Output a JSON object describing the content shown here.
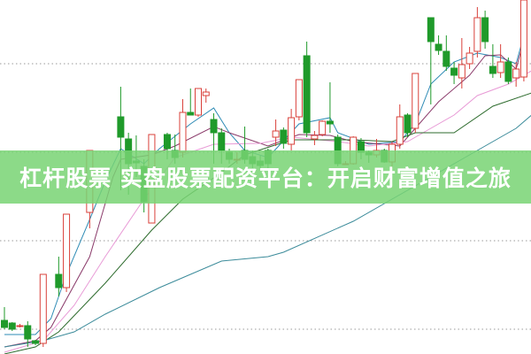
{
  "banner": {
    "title": "杠杆股票 实盘股票配资平台：开启财富增值之旅"
  },
  "chart_data": {
    "type": "candlestick",
    "title": "",
    "xlabel": "",
    "ylabel": "",
    "note": "no axis labels printed; prices on a relative 0-100 scale",
    "ylim": [
      0,
      100
    ],
    "grid": true,
    "gridlines": [
      82,
      57,
      32,
      7
    ],
    "colors": {
      "up": "#d9403a",
      "down": "#1f9a2a",
      "grid": "#999999",
      "banner": "#78d473"
    },
    "candles_columns": [
      "index",
      "open",
      "high",
      "low",
      "close"
    ],
    "candles": [
      [
        0,
        9.5,
        13.25,
        7,
        7.5
      ],
      [
        1,
        8.75,
        9,
        6.5,
        7
      ],
      [
        2,
        8,
        8.5,
        7.5,
        8
      ],
      [
        3,
        8,
        9.25,
        2,
        4.25
      ],
      [
        4,
        3.75,
        4,
        2.5,
        3
      ],
      [
        5,
        3,
        22.5,
        2,
        22.5
      ],
      [
        7,
        22.5,
        27.5,
        16.25,
        18.75
      ],
      [
        8,
        18.75,
        39.5,
        17.5,
        39.5
      ],
      [
        11,
        40,
        57.5,
        35.5,
        57.5
      ],
      [
        15,
        67,
        75.5,
        46.25,
        61.25
      ],
      [
        16,
        60.75,
        62.5,
        45,
        53.75
      ],
      [
        17,
        54.5,
        61.75,
        50,
        54
      ],
      [
        18,
        53,
        55,
        40,
        43
      ],
      [
        19,
        37,
        62,
        37,
        62
      ],
      [
        21,
        62,
        62.5,
        55,
        58
      ],
      [
        22,
        57.5,
        62,
        53.75,
        55.5
      ],
      [
        23,
        57,
        72,
        55.5,
        68.25
      ],
      [
        24,
        68.25,
        75,
        67.5,
        67.5
      ],
      [
        25,
        67.5,
        75,
        67,
        75
      ],
      [
        26,
        73,
        75,
        71,
        74
      ],
      [
        27,
        66.25,
        68,
        53.75,
        62.5
      ],
      [
        28,
        62.5,
        63.75,
        53.75,
        57.5
      ],
      [
        29,
        57,
        58,
        53.75,
        55
      ],
      [
        30,
        55,
        57,
        53.75,
        55
      ],
      [
        31,
        57.5,
        64.25,
        53.75,
        55
      ],
      [
        32,
        55.75,
        57.5,
        52.5,
        53.75
      ],
      [
        33,
        54.5,
        56,
        52.5,
        53.25
      ],
      [
        34,
        57.5,
        58,
        52,
        53.75
      ],
      [
        35,
        61.25,
        66.25,
        58.75,
        63
      ],
      [
        36,
        63.25,
        64,
        58,
        59.5
      ],
      [
        37,
        59.25,
        69.25,
        57.5,
        66.75
      ],
      [
        38,
        67,
        77.5,
        66,
        77.5
      ],
      [
        39,
        84.25,
        88.25,
        61.25,
        62.5
      ],
      [
        40,
        60.75,
        63,
        59,
        61.75
      ],
      [
        41,
        62,
        66,
        61.5,
        65.75
      ],
      [
        42,
        65.75,
        76.75,
        62.5,
        65
      ],
      [
        43,
        61.25,
        62,
        53,
        53.75
      ],
      [
        44,
        53.75,
        54.5,
        53.5,
        53.75
      ],
      [
        45,
        53.75,
        61.5,
        53.5,
        61.25
      ],
      [
        46,
        60,
        61,
        55,
        57
      ],
      [
        47,
        57,
        57.5,
        54,
        56.25
      ],
      [
        48,
        56.25,
        60.75,
        55.5,
        57.5
      ],
      [
        49,
        57.5,
        58,
        54,
        54.25
      ],
      [
        50,
        54.25,
        60,
        52.5,
        59.25
      ],
      [
        51,
        59.25,
        70.5,
        58,
        67
      ],
      [
        52,
        67.5,
        68,
        61.25,
        62.5
      ],
      [
        53,
        63.75,
        79.25,
        62.5,
        79.25
      ],
      [
        55,
        95,
        95,
        70.5,
        88.25
      ],
      [
        56,
        87.5,
        90,
        84.5,
        85.75
      ],
      [
        57,
        85.5,
        90,
        80,
        81.25
      ],
      [
        58,
        80.75,
        82.5,
        76.25,
        78.75
      ],
      [
        59,
        78,
        89.25,
        75,
        81.75
      ],
      [
        60,
        82,
        86.75,
        80.5,
        85
      ],
      [
        61,
        85.5,
        98,
        83.75,
        95
      ],
      [
        62,
        95,
        97,
        86.25,
        88.25
      ],
      [
        63,
        81.25,
        87.5,
        78,
        79.25
      ],
      [
        64,
        79.5,
        87.5,
        78,
        82.5
      ],
      [
        65,
        82.5,
        83.75,
        76.25,
        77
      ],
      [
        66,
        78,
        82.5,
        75.5,
        80.5
      ],
      [
        67,
        78.25,
        100,
        77,
        100
      ]
    ],
    "moving_averages": [
      {
        "color": "#2e8bb5",
        "points": [
          [
            0,
            5.5
          ],
          [
            4,
            5.5
          ],
          [
            6,
            10
          ],
          [
            8,
            22.5
          ],
          [
            11,
            38
          ],
          [
            13,
            48.75
          ],
          [
            15,
            58
          ],
          [
            18,
            53.75
          ],
          [
            20,
            58
          ],
          [
            24,
            65
          ],
          [
            27,
            69.5
          ],
          [
            29,
            62.5
          ],
          [
            31,
            57.5
          ],
          [
            34,
            55.5
          ],
          [
            38,
            65
          ],
          [
            42,
            66.75
          ],
          [
            43,
            62.5
          ],
          [
            47,
            59.25
          ],
          [
            51,
            60
          ],
          [
            53,
            65
          ],
          [
            55,
            76.25
          ],
          [
            58,
            82.5
          ],
          [
            61,
            85
          ],
          [
            64,
            83.75
          ],
          [
            66,
            82
          ],
          [
            67,
            90
          ]
        ]
      },
      {
        "color": "#8a3a6a",
        "points": [
          [
            0,
            2
          ],
          [
            4,
            3.75
          ],
          [
            6,
            7.5
          ],
          [
            11,
            27.5
          ],
          [
            14,
            50
          ],
          [
            15,
            55
          ],
          [
            19,
            56.25
          ],
          [
            22,
            58.75
          ],
          [
            27,
            64.25
          ],
          [
            29,
            62.5
          ],
          [
            34,
            58.75
          ],
          [
            38,
            62
          ],
          [
            42,
            61.75
          ],
          [
            45,
            60
          ],
          [
            51,
            58.75
          ],
          [
            53,
            63.75
          ],
          [
            56,
            71.25
          ],
          [
            60,
            78.75
          ],
          [
            62,
            84.25
          ],
          [
            64,
            84.5
          ],
          [
            66,
            80.5
          ],
          [
            67,
            88.75
          ]
        ]
      },
      {
        "color": "#e89ad6",
        "points": [
          [
            0,
            0.5
          ],
          [
            5,
            3.75
          ],
          [
            9,
            13.75
          ],
          [
            13,
            27.5
          ],
          [
            18,
            43.75
          ],
          [
            22,
            55.5
          ],
          [
            27,
            59.25
          ],
          [
            33,
            59.5
          ],
          [
            37,
            61.25
          ],
          [
            43,
            60
          ],
          [
            47,
            58.75
          ],
          [
            52,
            60
          ],
          [
            54,
            62.5
          ],
          [
            58,
            67.5
          ],
          [
            61,
            73
          ],
          [
            65,
            76.25
          ],
          [
            68,
            80
          ]
        ]
      },
      {
        "color": "#2d6b2d",
        "points": [
          [
            0,
            0
          ],
          [
            4,
            2
          ],
          [
            7,
            6.25
          ],
          [
            13,
            20
          ],
          [
            19,
            35
          ],
          [
            23,
            43.75
          ],
          [
            28,
            51.25
          ],
          [
            31,
            56.25
          ],
          [
            37,
            60.5
          ],
          [
            41,
            60.5
          ],
          [
            45,
            60.5
          ],
          [
            50,
            60
          ],
          [
            53,
            62.5
          ],
          [
            58,
            62.5
          ],
          [
            63,
            70
          ],
          [
            68,
            73.75
          ]
        ]
      },
      {
        "color": "#3b8b9a",
        "points": [
          [
            0,
            2
          ],
          [
            5,
            3.75
          ],
          [
            9,
            6.25
          ],
          [
            13,
            11.25
          ],
          [
            20,
            18.75
          ],
          [
            28,
            26.25
          ],
          [
            34,
            27.5
          ],
          [
            36,
            28.75
          ],
          [
            45,
            37.5
          ],
          [
            53,
            47.5
          ],
          [
            59,
            55
          ],
          [
            66,
            63.75
          ],
          [
            68,
            67.5
          ]
        ]
      }
    ]
  }
}
